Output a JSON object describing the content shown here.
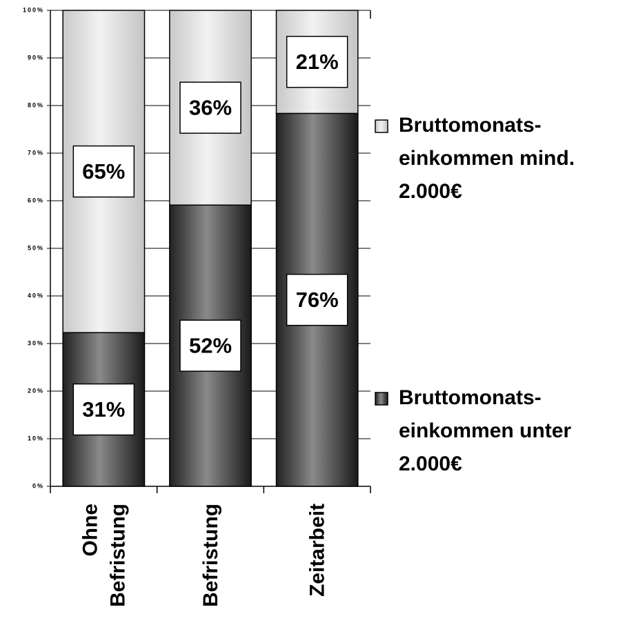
{
  "chart_data": {
    "type": "bar",
    "stacked": "percent",
    "categories": [
      "Ohne\nBefristung",
      "Befristung",
      "Zeitarbeit"
    ],
    "series": [
      {
        "name": "Bruttomonats-\neinkommen unter\n2.000€",
        "color": "#555555",
        "values": [
          31,
          52,
          76
        ],
        "value_labels": [
          "31%",
          "52%",
          "76%"
        ]
      },
      {
        "name": "Bruttomonats-\neinkommen mind.\n2.000€",
        "color": "#dddddd",
        "values": [
          65,
          36,
          21
        ],
        "value_labels": [
          "65%",
          "36%",
          "21%"
        ]
      }
    ],
    "ylim": [
      0,
      100
    ],
    "yticks": [
      {
        "value": 0,
        "label": "0%"
      },
      {
        "value": 10,
        "label": "10%"
      },
      {
        "value": 20,
        "label": "20%"
      },
      {
        "value": 30,
        "label": "30%"
      },
      {
        "value": 40,
        "label": "40%"
      },
      {
        "value": 50,
        "label": "50%"
      },
      {
        "value": 60,
        "label": "60%"
      },
      {
        "value": 70,
        "label": "70%"
      },
      {
        "value": 80,
        "label": "80%"
      },
      {
        "value": 90,
        "label": "90%"
      },
      {
        "value": 100,
        "label": "100%"
      }
    ],
    "grid": true
  }
}
